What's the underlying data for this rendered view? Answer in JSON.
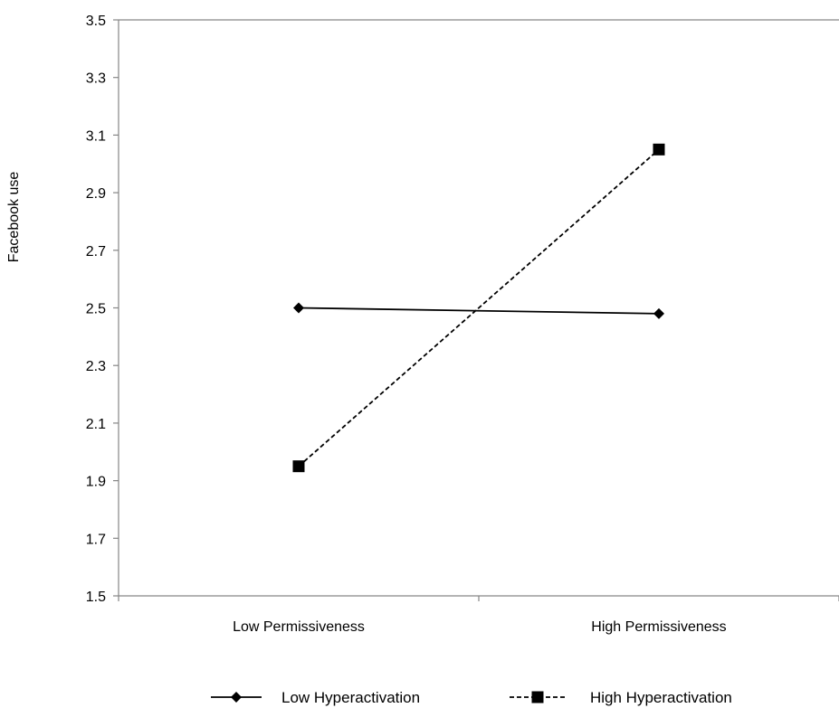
{
  "chart_data": {
    "type": "line",
    "title": "",
    "xlabel": "",
    "ylabel": "Facebook use",
    "categories": [
      "Low Permissiveness",
      "High Permissiveness"
    ],
    "ylim": [
      1.5,
      3.5
    ],
    "yticks": [
      "1.5",
      "1.7",
      "1.9",
      "2.1",
      "2.3",
      "2.5",
      "2.7",
      "2.9",
      "3.1",
      "3.3",
      "3.5"
    ],
    "grid": false,
    "legend_position": "bottom",
    "series": [
      {
        "name": "Low Hyperactivation",
        "values": [
          2.5,
          2.48
        ],
        "marker": "diamond",
        "line_style": "solid",
        "color": "#000000"
      },
      {
        "name": "High Hyperactivation",
        "values": [
          1.95,
          3.05
        ],
        "marker": "square",
        "line_style": "dashed",
        "color": "#000000"
      }
    ]
  }
}
